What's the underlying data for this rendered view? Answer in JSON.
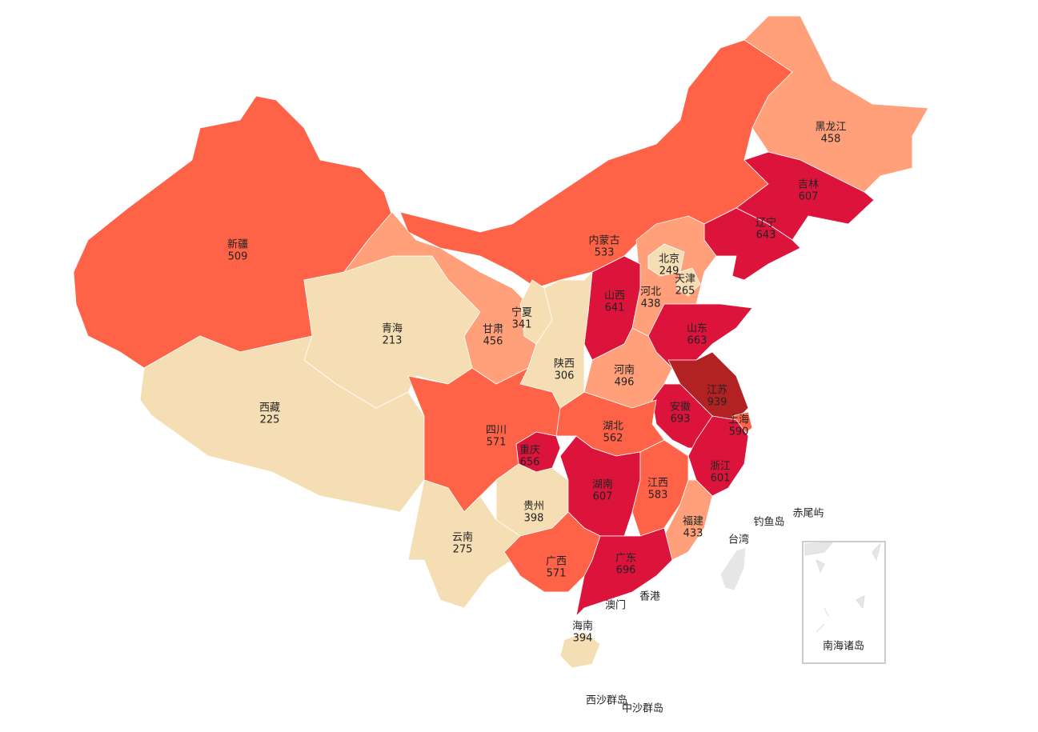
{
  "chart_data": {
    "type": "map",
    "regions": [
      {
        "name": "新疆",
        "value": 509,
        "color": "#ff6347"
      },
      {
        "name": "西藏",
        "value": 225,
        "color": "#f5deb3"
      },
      {
        "name": "青海",
        "value": 213,
        "color": "#f5deb3"
      },
      {
        "name": "甘肃",
        "value": 456,
        "color": "#ffa07a"
      },
      {
        "name": "内蒙古",
        "value": 533,
        "color": "#ff6347"
      },
      {
        "name": "黑龙江",
        "value": 458,
        "color": "#ffa07a"
      },
      {
        "name": "吉林",
        "value": 607,
        "color": "#dc143c"
      },
      {
        "name": "辽宁",
        "value": 643,
        "color": "#dc143c"
      },
      {
        "name": "河北",
        "value": 438,
        "color": "#ffa07a"
      },
      {
        "name": "北京",
        "value": 249,
        "color": "#f5deb3"
      },
      {
        "name": "天津",
        "value": 265,
        "color": "#f5deb3"
      },
      {
        "name": "山西",
        "value": 641,
        "color": "#dc143c"
      },
      {
        "name": "山东",
        "value": 663,
        "color": "#dc143c"
      },
      {
        "name": "河南",
        "value": 496,
        "color": "#ffa07a"
      },
      {
        "name": "江苏",
        "value": 939,
        "color": "#b22222"
      },
      {
        "name": "上海",
        "value": 590,
        "color": "#ff6347"
      },
      {
        "name": "安徽",
        "value": 693,
        "color": "#dc143c"
      },
      {
        "name": "浙江",
        "value": 601,
        "color": "#dc143c"
      },
      {
        "name": "湖北",
        "value": 562,
        "color": "#ff6347"
      },
      {
        "name": "陕西",
        "value": 306,
        "color": "#f5deb3"
      },
      {
        "name": "宁夏",
        "value": 341,
        "color": "#f5deb3"
      },
      {
        "name": "四川",
        "value": 571,
        "color": "#ff6347"
      },
      {
        "name": "重庆",
        "value": 656,
        "color": "#dc143c"
      },
      {
        "name": "贵州",
        "value": 398,
        "color": "#f5deb3"
      },
      {
        "name": "云南",
        "value": 275,
        "color": "#f5deb3"
      },
      {
        "name": "湖南",
        "value": 607,
        "color": "#dc143c"
      },
      {
        "name": "江西",
        "value": 583,
        "color": "#ff6347"
      },
      {
        "name": "福建",
        "value": 433,
        "color": "#ffa07a"
      },
      {
        "name": "广西",
        "value": 571,
        "color": "#ff6347"
      },
      {
        "name": "广东",
        "value": 696,
        "color": "#dc143c"
      },
      {
        "name": "海南",
        "value": 394,
        "color": "#f5deb3"
      }
    ],
    "annotations": [
      "台湾",
      "香港",
      "澳门",
      "钓鱼岛",
      "赤尾屿",
      "南海诸岛",
      "西沙群岛",
      "中沙群岛"
    ]
  }
}
